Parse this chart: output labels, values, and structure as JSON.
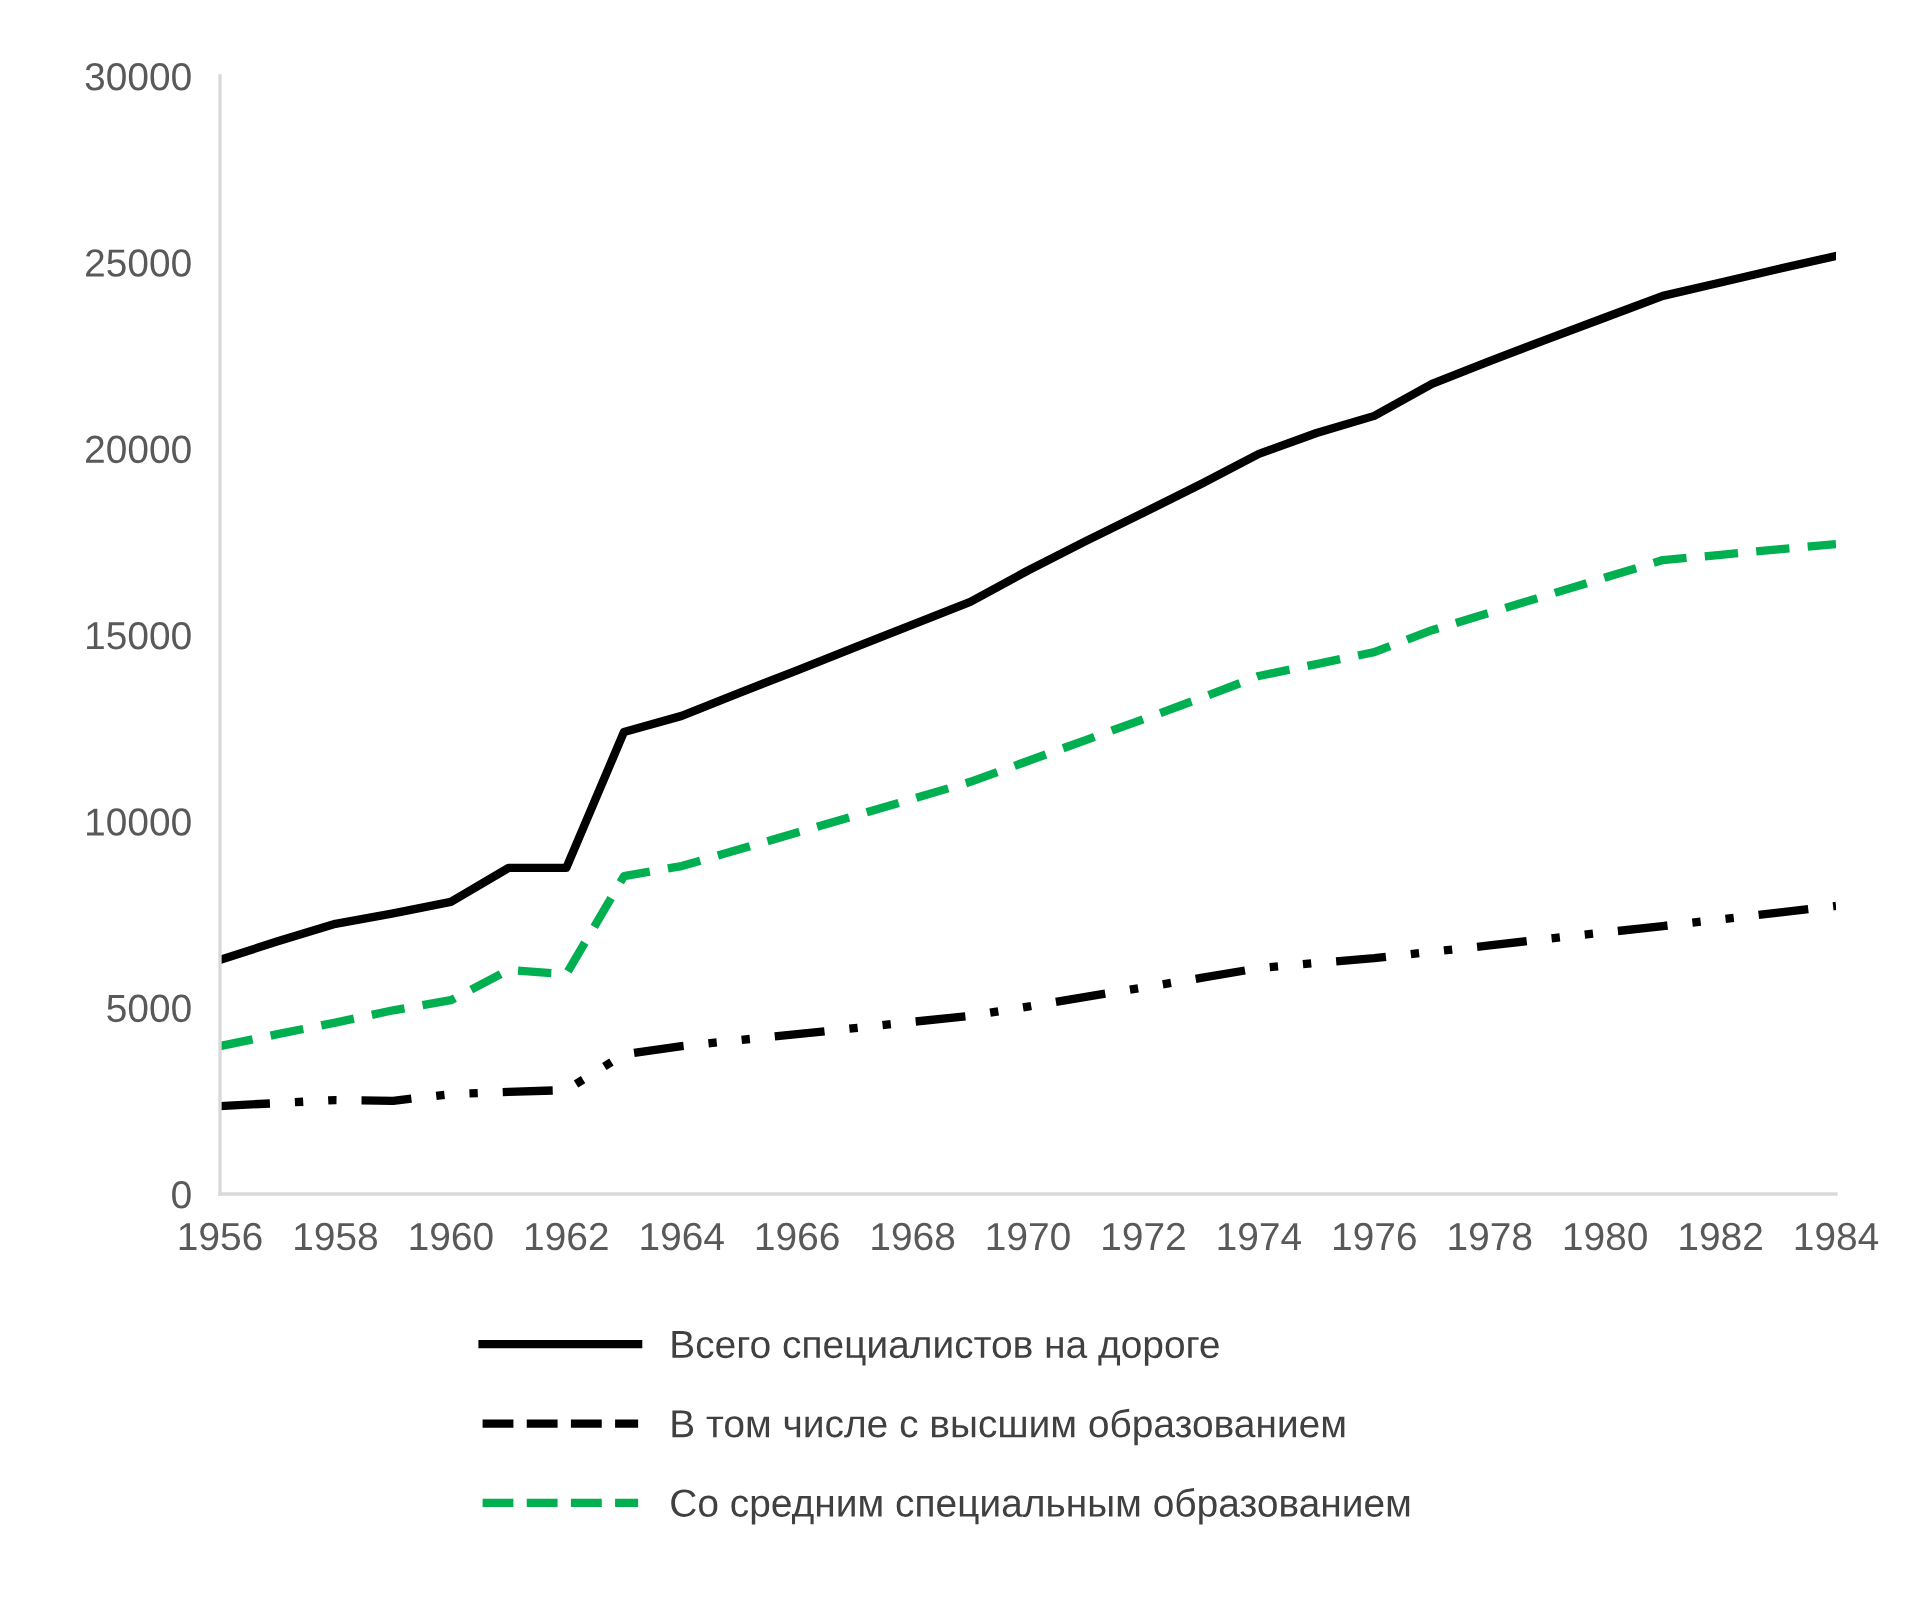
{
  "chart_data": {
    "type": "line",
    "x": [
      1956,
      1957,
      1958,
      1959,
      1960,
      1961,
      1962,
      1963,
      1964,
      1965,
      1966,
      1967,
      1968,
      1969,
      1970,
      1971,
      1972,
      1973,
      1974,
      1975,
      1976,
      1977,
      1978,
      1979,
      1980,
      1981,
      1982,
      1983,
      1984
    ],
    "series": [
      {
        "name": "Всего специалистов на дороге",
        "color": "#000000",
        "line_style": "solid",
        "values": [
          6280,
          6780,
          7250,
          7530,
          7840,
          8750,
          8750,
          12400,
          12830,
          13450,
          14050,
          14670,
          15280,
          15890,
          16730,
          17520,
          18280,
          19050,
          19860,
          20420,
          20880,
          21740,
          22350,
          22940,
          23520,
          24100,
          24460,
          24820,
          25170
        ]
      },
      {
        "name": "В том числе с высшим образованием",
        "color": "#000000",
        "line_style": "dashdotdot",
        "values": [
          2360,
          2440,
          2520,
          2500,
          2680,
          2740,
          2790,
          3750,
          3970,
          4130,
          4290,
          4450,
          4620,
          4780,
          5030,
          5290,
          5540,
          5800,
          6060,
          6200,
          6330,
          6500,
          6670,
          6850,
          7020,
          7190,
          7370,
          7550,
          7730
        ]
      },
      {
        "name": "Со средним специальным образованием",
        "color": "#00b050",
        "line_style": "dashed",
        "values": [
          3970,
          4290,
          4600,
          4930,
          5200,
          6010,
          5900,
          8530,
          8800,
          9250,
          9700,
          10150,
          10600,
          11060,
          11620,
          12180,
          12740,
          13310,
          13900,
          14220,
          14540,
          15130,
          15600,
          16070,
          16540,
          17010,
          17150,
          17300,
          17440
        ]
      }
    ],
    "xlim": [
      1956,
      1984
    ],
    "xticks": [
      1956,
      1958,
      1960,
      1962,
      1964,
      1966,
      1968,
      1970,
      1972,
      1974,
      1976,
      1978,
      1980,
      1982,
      1984
    ],
    "ylim": [
      0,
      30000
    ],
    "yticks": [
      0,
      5000,
      10000,
      15000,
      20000,
      25000,
      30000
    ],
    "grid": false,
    "legend": "bottom",
    "marker": "none"
  }
}
